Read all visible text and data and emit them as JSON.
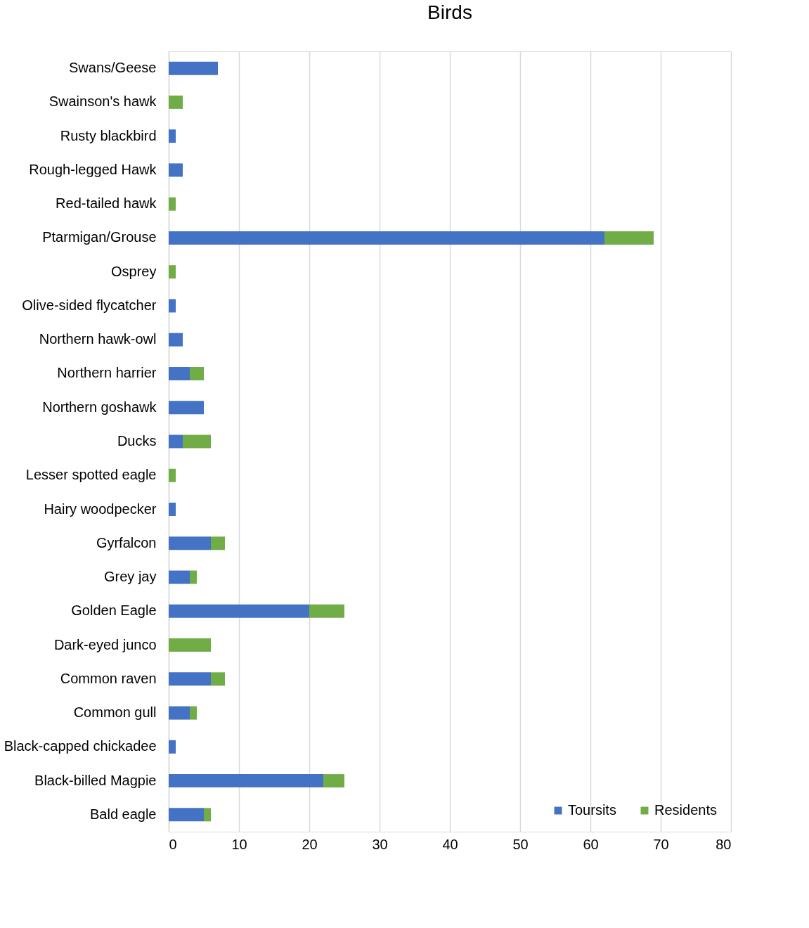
{
  "chart_data": {
    "type": "bar",
    "title": "Birds",
    "orientation": "horizontal",
    "stacked": true,
    "categories": [
      "Swans/Geese",
      "Swainson's hawk",
      "Rusty blackbird",
      "Rough-legged Hawk",
      "Red-tailed hawk",
      "Ptarmigan/Grouse",
      "Osprey",
      "Olive-sided flycatcher",
      "Northern hawk-owl",
      "Northern harrier",
      "Northern goshawk",
      "Ducks",
      "Lesser spotted eagle",
      "Hairy woodpecker",
      "Gyrfalcon",
      "Grey jay",
      "Golden Eagle",
      "Dark-eyed junco",
      "Common raven",
      "Common gull",
      "Black-capped chickadee",
      "Black-billed Magpie",
      "Bald eagle"
    ],
    "series": [
      {
        "name": "Toursits",
        "color": "#4472c4",
        "values": [
          7,
          null,
          1,
          2,
          null,
          62,
          null,
          1,
          2,
          3,
          5,
          2,
          null,
          1,
          6,
          3,
          20,
          null,
          6,
          3,
          1,
          22,
          5
        ]
      },
      {
        "name": "Residents",
        "color": "#70ad47",
        "values": [
          null,
          2,
          null,
          null,
          1,
          7,
          1,
          null,
          null,
          2,
          null,
          4,
          1,
          null,
          2,
          1,
          5,
          6,
          2,
          1,
          null,
          3,
          1
        ]
      }
    ],
    "xlim": [
      0,
      80
    ],
    "xticks": [
      0,
      10,
      20,
      30,
      40,
      50,
      60,
      70,
      80
    ],
    "grid": "x",
    "legend": "bottom right"
  }
}
